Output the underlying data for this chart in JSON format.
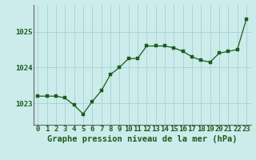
{
  "hours": [
    0,
    1,
    2,
    3,
    4,
    5,
    6,
    7,
    8,
    9,
    10,
    11,
    12,
    13,
    14,
    15,
    16,
    17,
    18,
    19,
    20,
    21,
    22,
    23
  ],
  "pressure": [
    1023.2,
    1023.2,
    1023.2,
    1023.15,
    1022.95,
    1022.7,
    1023.05,
    1023.35,
    1023.8,
    1024.0,
    1024.25,
    1024.25,
    1024.6,
    1024.6,
    1024.6,
    1024.55,
    1024.45,
    1024.3,
    1024.2,
    1024.15,
    1024.4,
    1024.45,
    1024.5,
    1025.35
  ],
  "line_color": "#1a5c1a",
  "marker_color": "#1a5c1a",
  "bg_color": "#ccecec",
  "grid_color": "#aad4d4",
  "xlabel": "Graphe pression niveau de la mer (hPa)",
  "xlabel_fontsize": 7.5,
  "tick_label_fontsize": 6.5,
  "ylim": [
    1022.4,
    1025.75
  ],
  "yticks": [
    1023,
    1024,
    1025
  ],
  "spine_color": "#666666"
}
